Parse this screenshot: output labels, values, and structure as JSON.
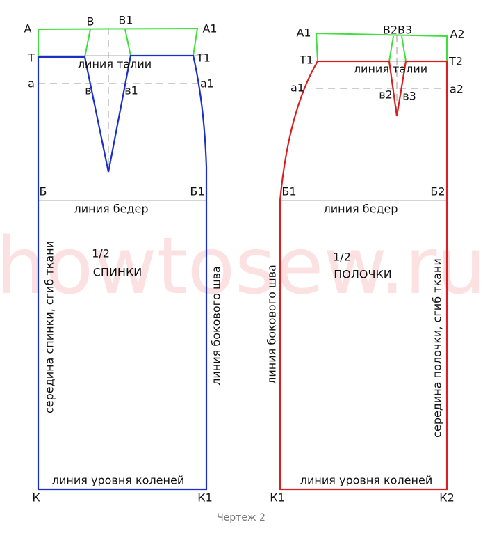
{
  "watermark": "howtosew.ru",
  "caption": "Чертеж 2",
  "back": {
    "labels": [
      "А",
      "В",
      "В1",
      "А1",
      "Т",
      "Т1",
      "а",
      "в",
      "в1",
      "а1",
      "Б",
      "Б1",
      "К",
      "К1"
    ],
    "waist": "линия талии",
    "hip": "линия бедер",
    "fraction": "1/2",
    "name": "СПИНКИ",
    "center": "середина спинки, сгиб ткани",
    "side": "линия бокового шва",
    "knee": "линия уровня коленей"
  },
  "front": {
    "labels": [
      "А1",
      "В2В3",
      "А2",
      "Т1",
      "Т2",
      "а1",
      "а2",
      "в2",
      "в3",
      "Б1",
      "Б2",
      "К1",
      "К2"
    ],
    "waist": "линия талии",
    "hip": "линия бедер",
    "fraction": "1/2",
    "name": "ПОЛОЧКИ",
    "side": "линия бокового шва",
    "center": "середина полочки, сгиб ткани",
    "knee": "линия уровня коленей"
  }
}
